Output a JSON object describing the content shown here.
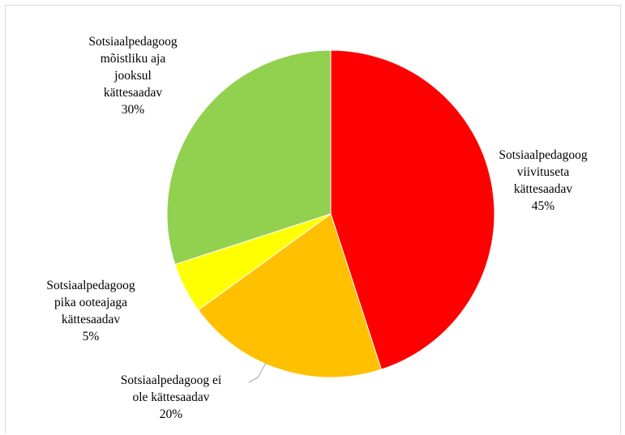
{
  "chart_data": {
    "type": "pie",
    "start_angle_deg": 0,
    "direction": "clockwise",
    "legend": "none",
    "slices": [
      {
        "label_lines": [
          "Sotsiaalpedagoog",
          "viivituseta",
          "kättesaadav"
        ],
        "value": 45,
        "value_label": "45%",
        "color": "#ff0000"
      },
      {
        "label_lines": [
          "Sotsiaalpedagoog ei",
          "ole kättesaadav"
        ],
        "value": 20,
        "value_label": "20%",
        "color": "#ffc000"
      },
      {
        "label_lines": [
          "Sotsiaalpedagoog",
          "pika ooteajaga",
          "kättesaadav"
        ],
        "value": 5,
        "value_label": "5%",
        "color": "#ffff00"
      },
      {
        "label_lines": [
          "Sotsiaalpedagoog",
          "mõistliku aja",
          "jooksul",
          "kättesaadav"
        ],
        "value": 30,
        "value_label": "30%",
        "color": "#92d050"
      }
    ]
  }
}
